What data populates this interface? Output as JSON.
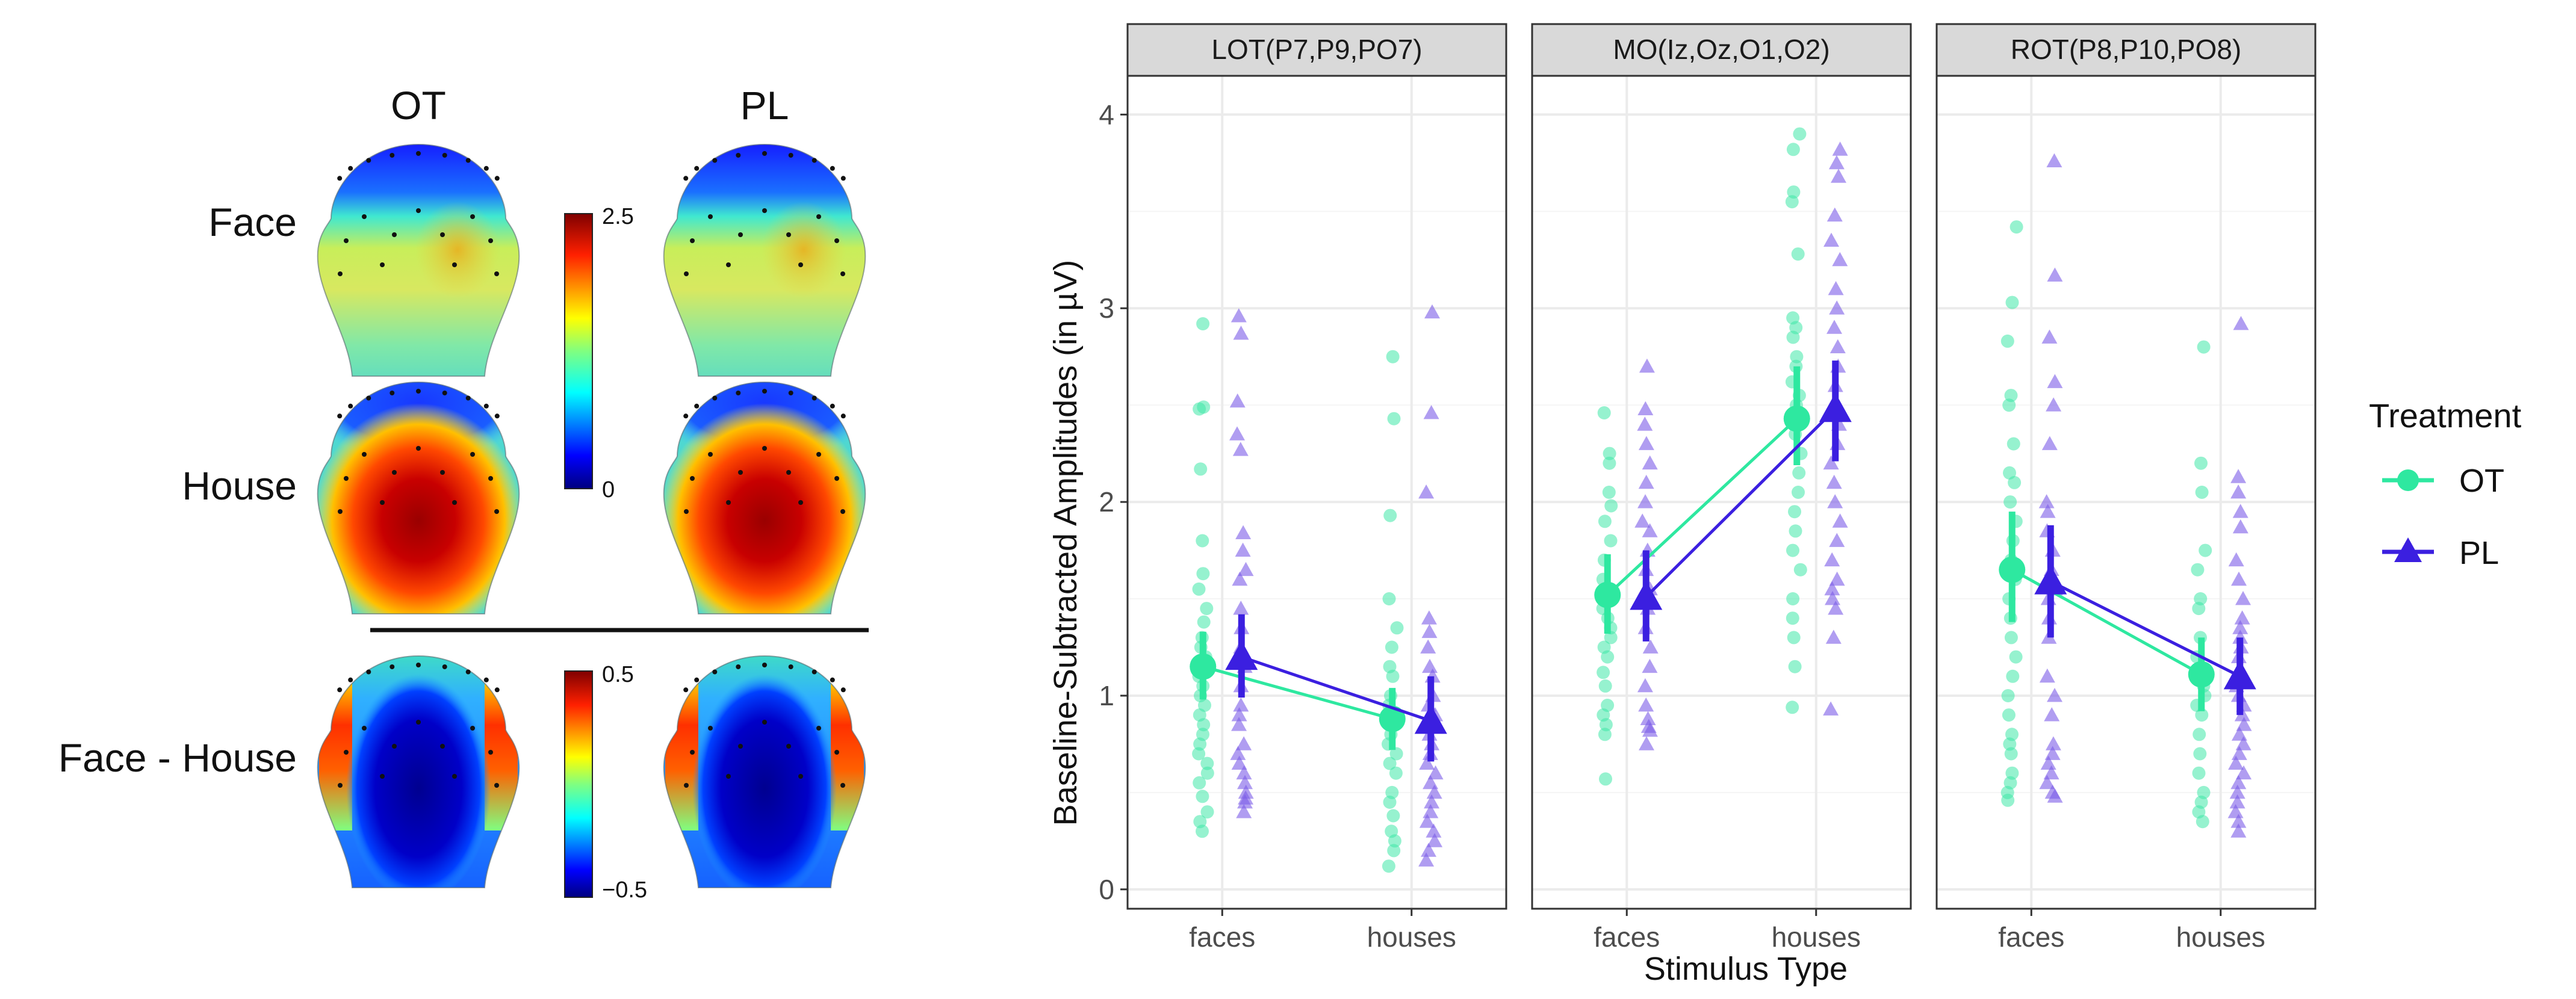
{
  "topomaps": {
    "columns": [
      "OT",
      "PL"
    ],
    "rows": [
      "Face",
      "House",
      "Face - House"
    ],
    "colorbar_top": {
      "max_label": "2.5",
      "min_label": "0",
      "min": 0,
      "max": 2.5
    },
    "colorbar_bottom": {
      "max_label": "0.5",
      "min_label": "−0.5",
      "min": -0.5,
      "max": 0.5
    },
    "intensity": {
      "Face": 0.48,
      "House": 0.95,
      "Face - House": 0.05
    }
  },
  "colors": {
    "OT": "#2ee8a0",
    "PL": "#3b1fe0",
    "OT_dots": "#3fe8a8",
    "PL_dots": "#7b5ce8",
    "strip_bg": "#d9d9d9",
    "grid_major": "#ebebeb",
    "grid_minor": "#f5f5f5",
    "panel_border": "#333333"
  },
  "chart_data": {
    "type": "scatter",
    "title": "",
    "xlabel": "Stimulus Type",
    "ylabel": "Baseline-Subtracted Amplitudes (in µV)",
    "categories": [
      "faces",
      "houses"
    ],
    "ylim": [
      -0.1,
      4.2
    ],
    "yticks": [
      "0",
      "1",
      "2",
      "3",
      "4"
    ],
    "legend": {
      "title": "Treatment",
      "entries": [
        "OT",
        "PL"
      ],
      "placement": "right"
    },
    "facets": [
      {
        "label": "LOT(P7,P9,PO7)",
        "means": {
          "OT": [
            1.15,
            0.88
          ],
          "PL": [
            1.2,
            0.87
          ]
        },
        "ci": {
          "OT": [
            [
              0.98,
              1.33
            ],
            [
              0.72,
              1.04
            ]
          ],
          "PL": [
            [
              0.99,
              1.42
            ],
            [
              0.66,
              1.1
            ]
          ]
        },
        "points": {
          "OT": {
            "faces": [
              2.92,
              2.49,
              2.48,
              2.17,
              1.8,
              1.63,
              1.55,
              1.45,
              1.38,
              1.3,
              1.25,
              1.2,
              1.15,
              1.1,
              1.05,
              1.0,
              0.95,
              0.9,
              0.85,
              0.8,
              0.75,
              0.7,
              0.65,
              0.6,
              0.55,
              0.48,
              0.4,
              0.35,
              0.3
            ],
            "houses": [
              2.75,
              2.43,
              1.93,
              1.5,
              1.35,
              1.25,
              1.15,
              1.1,
              1.0,
              0.95,
              0.9,
              0.85,
              0.8,
              0.75,
              0.7,
              0.65,
              0.6,
              0.5,
              0.45,
              0.38,
              0.3,
              0.25,
              0.2,
              0.12
            ]
          },
          "PL": {
            "faces": [
              2.96,
              2.87,
              2.52,
              2.35,
              2.27,
              1.84,
              1.75,
              1.65,
              1.6,
              1.45,
              1.35,
              1.25,
              1.15,
              1.05,
              0.95,
              0.9,
              0.85,
              0.75,
              0.7,
              0.65,
              0.6,
              0.55,
              0.5,
              0.47,
              0.45,
              0.4
            ],
            "houses": [
              2.98,
              2.46,
              2.05,
              1.4,
              1.33,
              1.25,
              1.15,
              1.1,
              1.0,
              0.95,
              0.9,
              0.85,
              0.8,
              0.75,
              0.7,
              0.65,
              0.6,
              0.55,
              0.5,
              0.45,
              0.4,
              0.35,
              0.3,
              0.25,
              0.2,
              0.15
            ]
          }
        }
      },
      {
        "label": "MO(Iz,Oz,O1,O2)",
        "means": {
          "OT": [
            1.52,
            2.43
          ],
          "PL": [
            1.51,
            2.48
          ]
        },
        "ci": {
          "OT": [
            [
              1.32,
              1.73
            ],
            [
              2.19,
              2.7
            ]
          ],
          "PL": [
            [
              1.28,
              1.75
            ],
            [
              2.21,
              2.73
            ]
          ]
        },
        "points": {
          "OT": {
            "faces": [
              2.46,
              2.25,
              2.2,
              2.05,
              1.98,
              1.9,
              1.8,
              1.7,
              1.6,
              1.5,
              1.45,
              1.4,
              1.35,
              1.3,
              1.25,
              1.2,
              1.12,
              1.05,
              0.95,
              0.9,
              0.85,
              0.8,
              0.57
            ],
            "houses": [
              3.9,
              3.82,
              3.6,
              3.55,
              3.28,
              2.95,
              2.9,
              2.85,
              2.75,
              2.7,
              2.62,
              2.55,
              2.5,
              2.45,
              2.35,
              2.25,
              2.15,
              2.05,
              1.95,
              1.85,
              1.75,
              1.65,
              1.5,
              1.4,
              1.3,
              1.15,
              0.94
            ]
          },
          "PL": {
            "faces": [
              2.7,
              2.48,
              2.4,
              2.3,
              2.2,
              2.1,
              2.0,
              1.9,
              1.85,
              1.75,
              1.65,
              1.55,
              1.45,
              1.35,
              1.25,
              1.15,
              1.05,
              0.95,
              0.88,
              0.84,
              0.82,
              0.75
            ],
            "houses": [
              3.82,
              3.75,
              3.68,
              3.48,
              3.35,
              3.25,
              3.1,
              3.0,
              2.9,
              2.8,
              2.7,
              2.6,
              2.5,
              2.4,
              2.3,
              2.2,
              2.1,
              2.0,
              1.9,
              1.8,
              1.7,
              1.6,
              1.55,
              1.5,
              1.45,
              1.3,
              0.93
            ]
          }
        }
      },
      {
        "label": "ROT(P8,P10,PO8)",
        "means": {
          "OT": [
            1.65,
            1.11
          ],
          "PL": [
            1.59,
            1.1
          ]
        },
        "ci": {
          "OT": [
            [
              1.38,
              1.95
            ],
            [
              0.92,
              1.3
            ]
          ],
          "PL": [
            [
              1.3,
              1.88
            ],
            [
              0.9,
              1.3
            ]
          ]
        },
        "points": {
          "OT": {
            "faces": [
              3.42,
              3.03,
              2.83,
              2.55,
              2.5,
              2.3,
              2.15,
              2.1,
              2.0,
              1.9,
              1.8,
              1.7,
              1.6,
              1.5,
              1.4,
              1.3,
              1.2,
              1.1,
              1.0,
              0.9,
              0.8,
              0.75,
              0.7,
              0.6,
              0.55,
              0.5,
              0.46
            ],
            "houses": [
              2.8,
              2.2,
              2.05,
              1.75,
              1.65,
              1.5,
              1.45,
              1.3,
              1.2,
              1.1,
              1.05,
              1.0,
              0.95,
              0.9,
              0.8,
              0.7,
              0.6,
              0.5,
              0.45,
              0.4,
              0.35
            ]
          },
          "PL": {
            "faces": [
              3.76,
              3.17,
              2.85,
              2.62,
              2.5,
              2.3,
              2.0,
              1.95,
              1.85,
              1.75,
              1.65,
              1.55,
              1.5,
              1.4,
              1.3,
              1.1,
              1.0,
              0.9,
              0.75,
              0.7,
              0.65,
              0.6,
              0.55,
              0.5,
              0.48
            ],
            "houses": [
              2.92,
              2.13,
              2.05,
              1.95,
              1.87,
              1.7,
              1.6,
              1.5,
              1.4,
              1.35,
              1.3,
              1.25,
              1.2,
              1.1,
              1.05,
              1.0,
              0.95,
              0.9,
              0.85,
              0.8,
              0.75,
              0.7,
              0.65,
              0.6,
              0.55,
              0.5,
              0.45,
              0.4,
              0.35,
              0.3
            ]
          }
        }
      }
    ]
  }
}
